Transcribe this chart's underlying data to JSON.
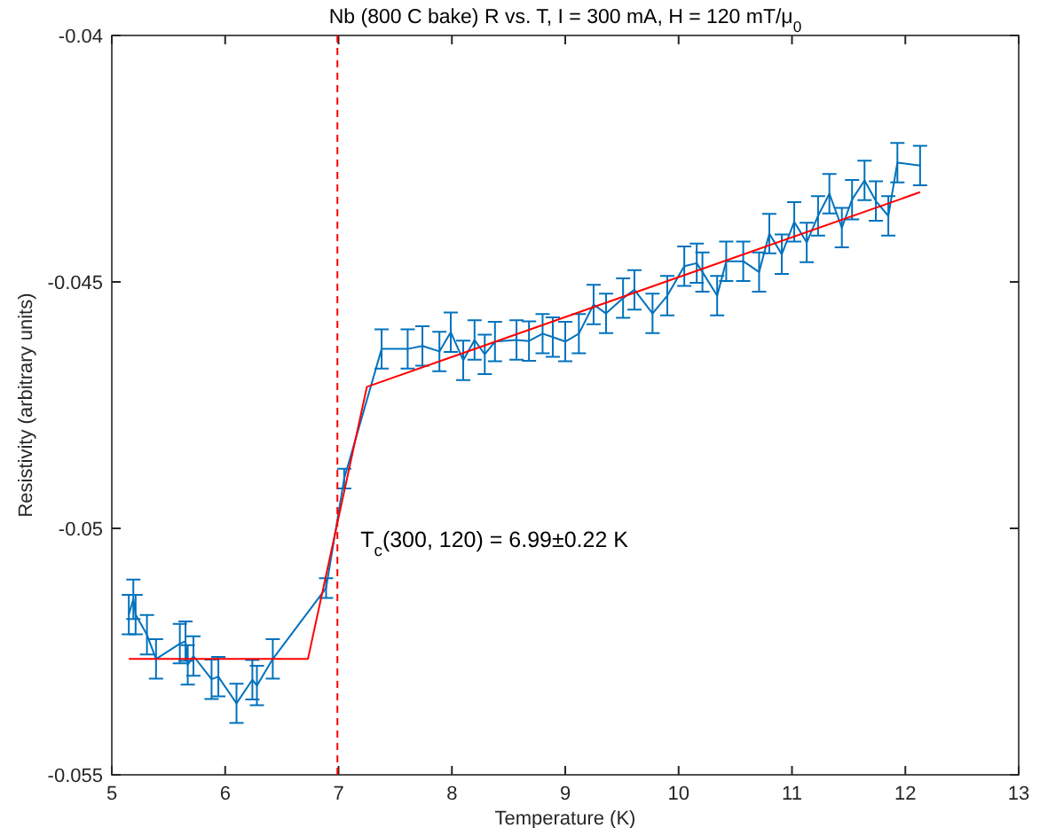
{
  "chart_data": {
    "type": "line",
    "title": "Nb (800 C bake) R vs. T, I = 300 mA, H = 120 mT/μ$_{0}$",
    "xlabel": "Temperature (K)",
    "ylabel": "Resistivity (arbitrary units)",
    "xlim": [
      5,
      13
    ],
    "xticks": [
      5,
      6,
      7,
      8,
      9,
      10,
      11,
      12,
      13
    ],
    "ylim": [
      -0.055,
      -0.04
    ],
    "yticks": [
      -0.055,
      -0.05,
      -0.045,
      -0.04
    ],
    "grid": false,
    "marker": "none",
    "series": [
      {
        "color": "#0072bd",
        "line_style": "solid",
        "x": [
          5.15,
          5.19,
          5.21,
          5.31,
          5.39,
          5.6,
          5.65,
          5.67,
          5.72,
          5.88,
          5.94,
          6.1,
          6.24,
          6.28,
          6.42,
          6.89,
          7.05,
          7.38,
          7.61,
          7.74,
          7.89,
          7.99,
          8.1,
          8.2,
          8.29,
          8.38,
          8.57,
          8.68,
          8.8,
          8.89,
          9.0,
          9.12,
          9.25,
          9.36,
          9.51,
          9.61,
          9.77,
          9.9,
          10.05,
          10.16,
          10.21,
          10.34,
          10.42,
          10.57,
          10.71,
          10.8,
          10.91,
          11.02,
          11.13,
          11.23,
          11.33,
          11.44,
          11.53,
          11.64,
          11.74,
          11.85,
          11.93,
          12.13
        ],
        "values": [
          -0.05175,
          -0.05144,
          -0.05175,
          -0.05216,
          -0.05265,
          -0.05234,
          -0.05229,
          -0.05277,
          -0.05259,
          -0.05306,
          -0.05301,
          -0.05355,
          -0.05307,
          -0.05319,
          -0.05265,
          -0.05121,
          -0.04899,
          -0.04636,
          -0.04636,
          -0.0463,
          -0.04641,
          -0.04602,
          -0.04659,
          -0.04618,
          -0.04647,
          -0.04621,
          -0.04618,
          -0.0462,
          -0.04605,
          -0.04612,
          -0.04621,
          -0.04605,
          -0.04546,
          -0.04564,
          -0.04533,
          -0.04516,
          -0.04564,
          -0.04528,
          -0.04468,
          -0.04462,
          -0.0448,
          -0.04528,
          -0.04458,
          -0.04458,
          -0.0448,
          -0.04402,
          -0.04444,
          -0.04378,
          -0.0442,
          -0.04366,
          -0.04321,
          -0.0439,
          -0.04333,
          -0.04294,
          -0.04336,
          -0.04366,
          -0.04258,
          -0.04264
        ],
        "errors": [
          0.0004,
          0.0004,
          0.0004,
          0.0004,
          0.0004,
          0.0004,
          0.0004,
          0.0004,
          0.0004,
          0.0004,
          0.0004,
          0.0004,
          0.0004,
          0.0004,
          0.0004,
          0.0002,
          0.0002,
          0.0004,
          0.0004,
          0.0004,
          0.0004,
          0.0004,
          0.0004,
          0.0004,
          0.0004,
          0.0004,
          0.0004,
          0.0004,
          0.0004,
          0.0004,
          0.0004,
          0.0004,
          0.0004,
          0.0004,
          0.0004,
          0.0004,
          0.0004,
          0.0004,
          0.0004,
          0.0004,
          0.0004,
          0.0004,
          0.0004,
          0.0004,
          0.0004,
          0.0004,
          0.0004,
          0.0004,
          0.0004,
          0.0004,
          0.0004,
          0.0004,
          0.0004,
          0.0004,
          0.0004,
          0.0004,
          0.0004,
          0.0004
        ]
      },
      {
        "color": "#ff0000",
        "line_style": "solid",
        "x": [
          5.15,
          6.73,
          7.25,
          12.13
        ],
        "values": [
          -0.05265,
          -0.05265,
          -0.04713,
          -0.04318
        ]
      }
    ],
    "ref_lines": [
      {
        "axis": "x",
        "value": 6.99,
        "label": "T$_{c}$(300, 120) = 6.99±0.22 K",
        "color": "#ff0000",
        "line_style": "dashed"
      }
    ]
  }
}
